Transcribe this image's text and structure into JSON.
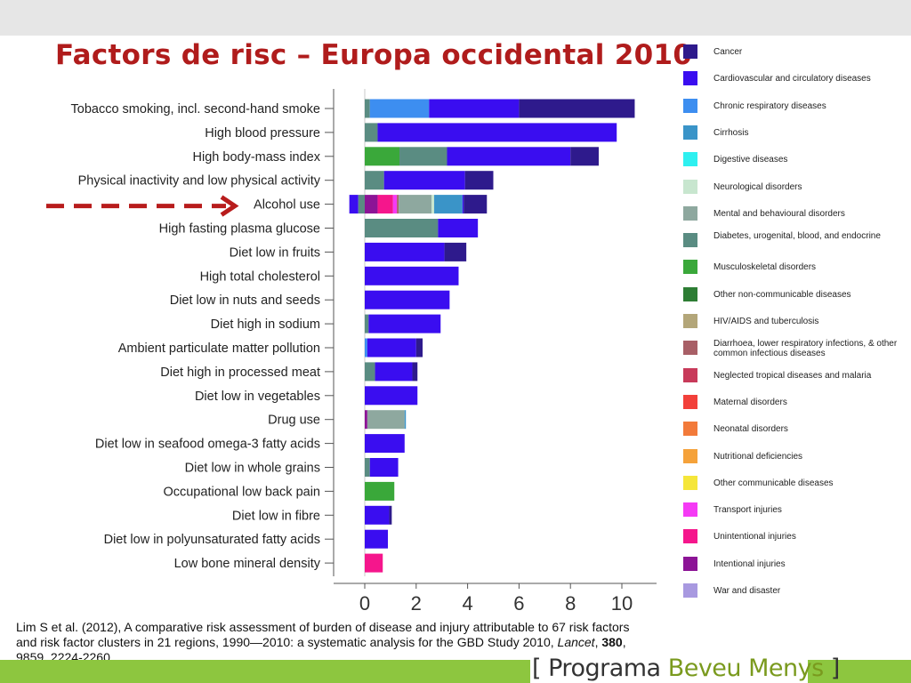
{
  "title": "Factors de risc – Europa occidental 2010",
  "chart_data": {
    "type": "bar",
    "orientation": "horizontal",
    "stacked": true,
    "x_ticks": [
      0,
      2,
      4,
      6,
      8,
      10
    ],
    "xlim": [
      -0.6,
      11
    ],
    "categories": [
      "Tobacco smoking, incl. second-hand smoke",
      "High blood pressure",
      "High body-mass index",
      "Physical inactivity and low physical activity",
      "Alcohol use",
      "High fasting plasma glucose",
      "Diet low in fruits",
      "High total cholesterol",
      "Diet low in nuts and seeds",
      "Diet high in sodium",
      "Ambient particulate matter pollution",
      "Diet high in processed meat",
      "Diet low in vegetables",
      "Drug use",
      "Diet low in seafood omega-3 fatty acids",
      "Diet low in whole grains",
      "Occupational low back pain",
      "Diet low in fibre",
      "Diet low in polyunsaturated fatty acids",
      "Low bone mineral density"
    ],
    "bars": [
      [
        [
          "Diabetes, urogenital, blood, and endocrine",
          0.2
        ],
        [
          "Chronic respiratory diseases",
          2.3
        ],
        [
          "Cardiovascular and circulatory diseases",
          3.5
        ],
        [
          "Cancer",
          4.5
        ]
      ],
      [
        [
          "Diabetes, urogenital, blood, and endocrine",
          0.5
        ],
        [
          "Cardiovascular and circulatory diseases",
          9.3
        ]
      ],
      [
        [
          "Musculoskeletal disorders",
          1.35
        ],
        [
          "Diabetes, urogenital, blood, and endocrine",
          1.85
        ],
        [
          "Cardiovascular and circulatory diseases",
          4.8
        ],
        [
          "Cancer",
          1.1
        ]
      ],
      [
        [
          "Diabetes, urogenital, blood, and endocrine",
          0.75
        ],
        [
          "Cardiovascular and circulatory diseases",
          3.15
        ],
        [
          "Cancer",
          1.1
        ]
      ],
      [
        [
          "Cardiovascular and circulatory diseases",
          -0.6,
          -0.25
        ],
        [
          "Diabetes, urogenital, blood, and endocrine",
          -0.25,
          0
        ],
        [
          "Intentional injuries",
          0,
          0.5
        ],
        [
          "Unintentional injuries",
          0.5,
          1.1
        ],
        [
          "Transport injuries",
          1.1,
          1.25
        ],
        [
          "Diarrhoea, lower respiratory infections, & other common infectious diseases",
          1.25,
          1.32
        ],
        [
          "Mental and behavioural disorders",
          1.32,
          2.6
        ],
        [
          "Neurological disorders",
          2.6,
          2.7
        ],
        [
          "Cirrhosis",
          2.7,
          3.8
        ],
        [
          "Cardiovascular and circulatory diseases",
          3.8,
          3.85
        ],
        [
          "Cancer",
          3.85,
          4.75
        ]
      ],
      [
        [
          "Diabetes, urogenital, blood, and endocrine",
          2.85
        ],
        [
          "Cardiovascular and circulatory diseases",
          1.55
        ]
      ],
      [
        [
          "Cardiovascular and circulatory diseases",
          3.1
        ],
        [
          "Cancer",
          0.85
        ]
      ],
      [
        [
          "Cardiovascular and circulatory diseases",
          3.65
        ]
      ],
      [
        [
          "Cardiovascular and circulatory diseases",
          3.3
        ]
      ],
      [
        [
          "Diabetes, urogenital, blood, and endocrine",
          0.15
        ],
        [
          "Cardiovascular and circulatory diseases",
          2.8
        ]
      ],
      [
        [
          "Chronic respiratory diseases",
          0.1
        ],
        [
          "Cardiovascular and circulatory diseases",
          1.9
        ],
        [
          "Cancer",
          0.25
        ]
      ],
      [
        [
          "Diabetes, urogenital, blood, and endocrine",
          0.4
        ],
        [
          "Cardiovascular and circulatory diseases",
          1.45
        ],
        [
          "Cancer",
          0.2
        ]
      ],
      [
        [
          "Cardiovascular and circulatory diseases",
          2.05
        ]
      ],
      [
        [
          "Intentional injuries",
          0.1
        ],
        [
          "Mental and behavioural disorders",
          1.45
        ],
        [
          "Cirrhosis",
          0.05
        ]
      ],
      [
        [
          "Cardiovascular and circulatory diseases",
          1.55
        ]
      ],
      [
        [
          "Diabetes, urogenital, blood, and endocrine",
          0.2
        ],
        [
          "Cardiovascular and circulatory diseases",
          1.1
        ]
      ],
      [
        [
          "Musculoskeletal disorders",
          1.15
        ]
      ],
      [
        [
          "Cardiovascular and circulatory diseases",
          0.95
        ],
        [
          "Cancer",
          0.1
        ]
      ],
      [
        [
          "Cardiovascular and circulatory diseases",
          0.9
        ]
      ],
      [
        [
          "Unintentional injuries",
          0.7
        ]
      ]
    ],
    "highlight_category": "Alcohol use",
    "legend_position": "right"
  },
  "legend": [
    {
      "label": "Cancer",
      "color": "#2e1a8c"
    },
    {
      "label": "Cardiovascular and circulatory diseases",
      "color": "#3a0df0"
    },
    {
      "label": "Chronic respiratory diseases",
      "color": "#3d8ef0"
    },
    {
      "label": "Cirrhosis",
      "color": "#3a94c8"
    },
    {
      "label": "Digestive diseases",
      "color": "#2ef0f0"
    },
    {
      "label": "Neurological disorders",
      "color": "#c8e6cf"
    },
    {
      "label": "Mental and behavioural disorders",
      "color": "#8ea89f"
    },
    {
      "label": "Diabetes, urogenital, blood, and endocrine",
      "color": "#5a8c82"
    },
    {
      "label": "Musculoskeletal disorders",
      "color": "#3aa83a"
    },
    {
      "label": "Other non-communicable diseases",
      "color": "#2d7d34"
    },
    {
      "label": "HIV/AIDS and tuberculosis",
      "color": "#b3a679"
    },
    {
      "label": "Diarrhoea, lower respiratory infections, & other common infectious diseases",
      "color": "#a85f66"
    },
    {
      "label": "Neglected tropical diseases and malaria",
      "color": "#c83a5a"
    },
    {
      "label": "Maternal disorders",
      "color": "#f2403a"
    },
    {
      "label": "Neonatal disorders",
      "color": "#f27a3a"
    },
    {
      "label": "Nutritional deficiencies",
      "color": "#f5a23a"
    },
    {
      "label": "Other communicable diseases",
      "color": "#f5e63a"
    },
    {
      "label": "Transport injuries",
      "color": "#f53af5"
    },
    {
      "label": "Unintentional injuries",
      "color": "#f5168c"
    },
    {
      "label": "Intentional injuries",
      "color": "#8c1496"
    },
    {
      "label": "War and disaster",
      "color": "#a899e0"
    }
  ],
  "arrow_color": "#b81c1c",
  "citation": {
    "text1": "Lim S et al. (2012), A comparative risk assessment of burden of disease and injury attributable to 67 risk factors and risk factor clusters in 21 regions, 1990—2010: a systematic analysis for the GBD Study 2010,",
    "journal": "Lancet",
    "sep1": ", ",
    "volume": "380",
    "rest": ", 9859, 2224-2260"
  },
  "brand": {
    "open": "[ ",
    "word1": "Programa",
    "word2": "Beveu Menys",
    "close": " ]"
  }
}
